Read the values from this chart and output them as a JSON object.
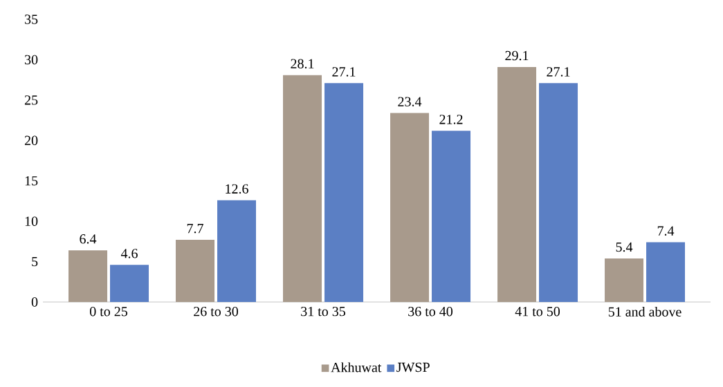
{
  "chart_data": {
    "type": "bar",
    "categories": [
      "0 to 25",
      "26 to 30",
      "31 to 35",
      "36 to 40",
      "41 to 50",
      "51 and above"
    ],
    "series": [
      {
        "name": "Akhuwat",
        "color": "#a89a8c",
        "values": [
          6.4,
          7.7,
          28.1,
          23.4,
          29.1,
          5.4
        ]
      },
      {
        "name": "JWSP",
        "color": "#5b7fc4",
        "values": [
          4.6,
          12.6,
          27.1,
          21.2,
          27.1,
          7.4
        ]
      }
    ],
    "ylim": [
      0,
      35
    ],
    "yticks": [
      0,
      5,
      10,
      15,
      20,
      25,
      30,
      35
    ],
    "data_labels": true,
    "grid": false,
    "legend": "bottom"
  }
}
